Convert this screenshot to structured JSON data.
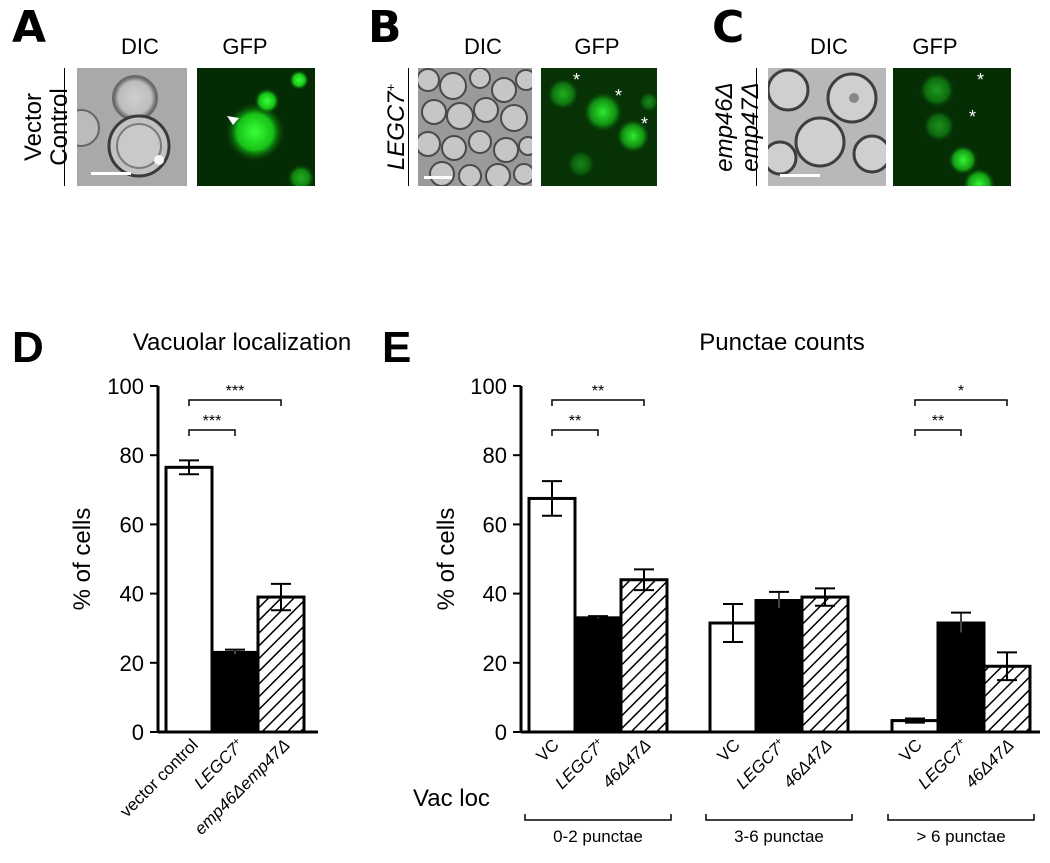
{
  "panels": {
    "A": {
      "letter": "A",
      "dic": "DIC",
      "gfp": "GFP",
      "side_line1": "Vector",
      "side_line2": "Control"
    },
    "B": {
      "letter": "B",
      "dic": "DIC",
      "gfp": "GFP",
      "side_line1": "LEGC7",
      "side_sup": "+"
    },
    "C": {
      "letter": "C",
      "dic": "DIC",
      "gfp": "GFP",
      "side_line1": "emp46Δ",
      "side_line2": "emp47Δ"
    }
  },
  "chart_data": [
    {
      "panel": "D",
      "type": "bar",
      "title": "Vacuolar localization",
      "ylabel": "% of cells",
      "ylim": [
        0,
        100
      ],
      "yticks": [
        0,
        20,
        40,
        60,
        80,
        100
      ],
      "categories": [
        "vector control",
        "LEGC7+",
        "emp46Δemp47Δ"
      ],
      "category_labels": [
        {
          "text": "vector control",
          "italic": false
        },
        {
          "text": "LEGC7",
          "sup": "+",
          "italic": true
        },
        {
          "text": "emp46Δemp47Δ",
          "italic": true
        }
      ],
      "values": [
        76.5,
        23,
        39
      ],
      "errors": [
        2,
        0.8,
        3.8
      ],
      "fills": [
        "white",
        "black",
        "hatch"
      ],
      "significance": [
        {
          "from": 0,
          "to": 1,
          "label": "***"
        },
        {
          "from": 0,
          "to": 2,
          "label": "***"
        }
      ]
    },
    {
      "panel": "E",
      "type": "bar",
      "title": "Punctae counts",
      "ylabel": "% of cells",
      "ylim": [
        0,
        100
      ],
      "yticks": [
        0,
        20,
        40,
        60,
        80,
        100
      ],
      "row_label": "Vac loc",
      "bar_labels": [
        {
          "text": "VC",
          "italic": false
        },
        {
          "text": "LEGC7",
          "sup": "+",
          "italic": true
        },
        {
          "text": "46Δ47Δ",
          "italic": true
        }
      ],
      "groups": [
        {
          "name": "0-2 punctae",
          "values": [
            67.5,
            33,
            44
          ],
          "errors": [
            5,
            0.5,
            3
          ],
          "significance": [
            {
              "from": 0,
              "to": 1,
              "label": "**"
            },
            {
              "from": 0,
              "to": 2,
              "label": "**"
            }
          ]
        },
        {
          "name": "3-6 punctae",
          "values": [
            31.5,
            38,
            39
          ],
          "errors": [
            5.5,
            2.5,
            2.5
          ],
          "significance": []
        },
        {
          "name": "> 6 punctae",
          "values": [
            3.3,
            31.5,
            19
          ],
          "errors": [
            0.6,
            3,
            4
          ],
          "significance": [
            {
              "from": 0,
              "to": 1,
              "label": "**"
            },
            {
              "from": 0,
              "to": 2,
              "label": "*"
            }
          ]
        }
      ],
      "fills": [
        "white",
        "black",
        "hatch"
      ]
    }
  ]
}
